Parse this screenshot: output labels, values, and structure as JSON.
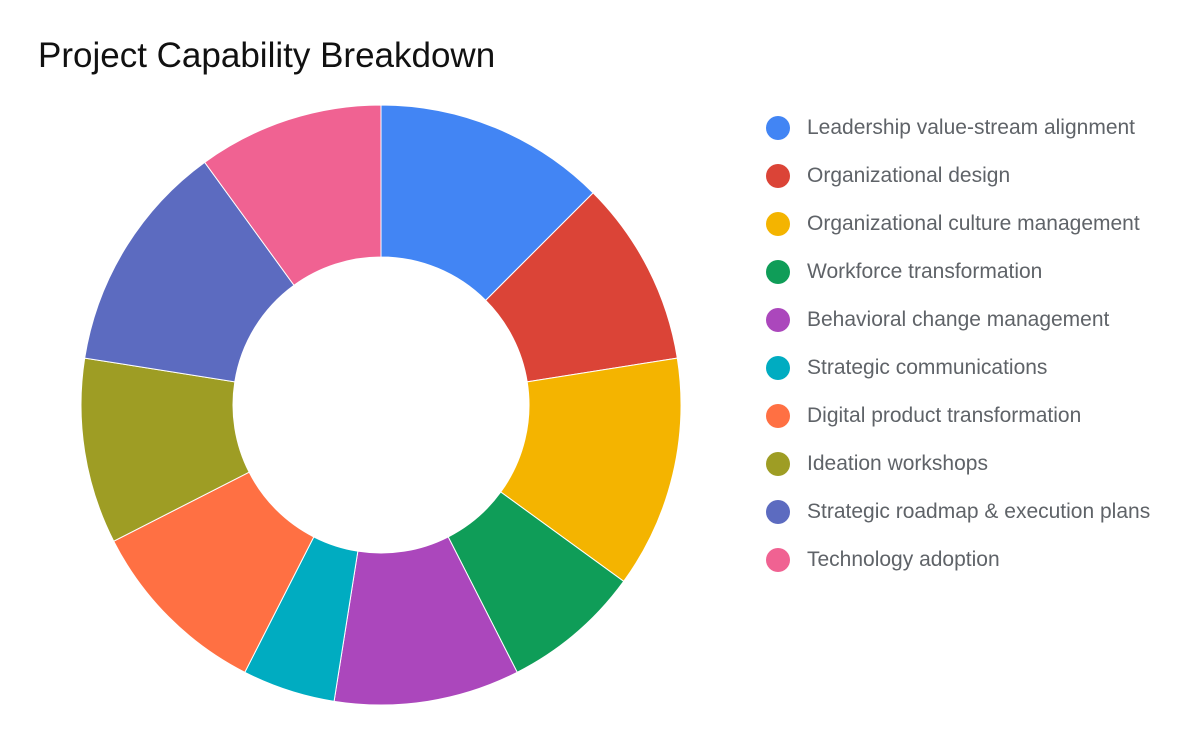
{
  "chart_data": {
    "type": "pie",
    "variant": "donut",
    "title": "Project Capability Breakdown",
    "legend_position": "right",
    "categories": [
      "Leadership value-stream alignment",
      "Organizational design",
      "Organizational culture management",
      "Workforce transformation",
      "Behavioral change management",
      "Strategic communications",
      "Digital product transformation",
      "Ideation workshops",
      "Strategic roadmap & execution plans",
      "Technology adoption"
    ],
    "values": [
      12.5,
      10.0,
      12.5,
      7.5,
      10.0,
      5.0,
      10.0,
      10.0,
      12.5,
      10.0
    ],
    "colors": [
      "#4285f4",
      "#db4437",
      "#f4b400",
      "#0f9d58",
      "#ab47bc",
      "#00acc1",
      "#ff7043",
      "#9e9d24",
      "#5c6bc0",
      "#f06292"
    ]
  }
}
